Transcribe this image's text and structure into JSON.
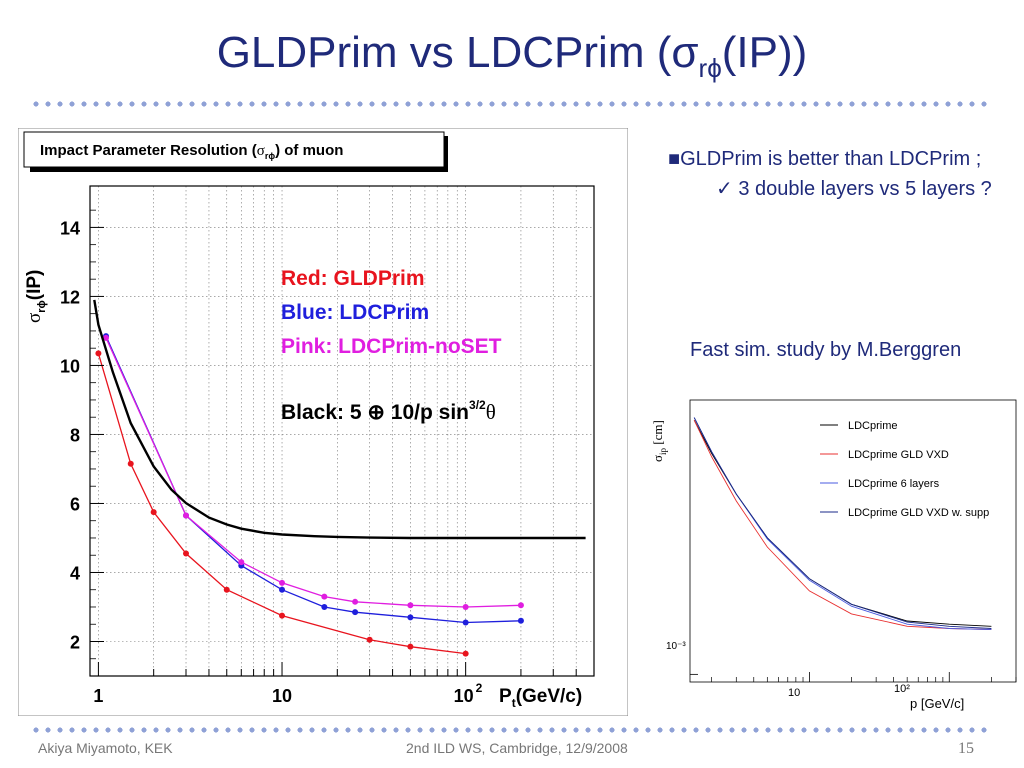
{
  "slide": {
    "title_main": "GLDPrim vs LDCPrim (σ",
    "title_sub": "rϕ",
    "title_end": "(IP))",
    "page_number": "15",
    "footer_left": "Akiya Miyamoto, KEK",
    "footer_center": "2nd ILD WS, Cambridge, 12/9/2008"
  },
  "bullets": {
    "b1": "GLDPrim is better than LDCPrim ;",
    "b1_sub": "3 double layers vs 5 layers ?"
  },
  "fast_sim": {
    "caption": "Fast sim. study  by M.Berggren"
  },
  "colors": {
    "title": "#1f2a7a",
    "red": "#e8141e",
    "blue": "#1f1fdc",
    "pink": "#e01ee0",
    "black": "#000000",
    "dots": "#8fa1d6"
  },
  "chart_data": [
    {
      "type": "line",
      "title": "Impact Parameter Resolution (σrϕ) of muon",
      "xlabel": "Pt(GeV/c)",
      "ylabel": "σrϕ(IP)",
      "xscale": "log",
      "xlim": [
        0.9,
        500
      ],
      "ylim": [
        1,
        15.2
      ],
      "grid": true,
      "x_ticks": [
        1,
        10,
        100
      ],
      "x_tick_labels": [
        "1",
        "10",
        "10²"
      ],
      "y_ticks": [
        2,
        4,
        6,
        8,
        10,
        12,
        14
      ],
      "y_tick_labels": [
        "2",
        "4",
        "6",
        "8",
        "10",
        "12",
        "14"
      ],
      "series": [
        {
          "name": "Red: GLDPrim",
          "color": "#e8141e",
          "x": [
            1,
            1.5,
            2,
            3,
            5,
            10,
            30,
            50,
            100
          ],
          "y": [
            10.35,
            7.15,
            5.75,
            4.55,
            3.5,
            2.75,
            2.05,
            1.85,
            1.65
          ]
        },
        {
          "name": "Blue: LDCPrim",
          "color": "#1f1fdc",
          "x": [
            1.1,
            3,
            6,
            10,
            17,
            25,
            50,
            100,
            200
          ],
          "y": [
            10.85,
            5.65,
            4.2,
            3.5,
            3.0,
            2.85,
            2.7,
            2.55,
            2.6
          ]
        },
        {
          "name": "Pink: LDCPrim-noSET",
          "color": "#e01ee0",
          "x": [
            1.1,
            3,
            6,
            10,
            17,
            25,
            50,
            100,
            200
          ],
          "y": [
            10.8,
            5.65,
            4.3,
            3.7,
            3.3,
            3.15,
            3.05,
            3.0,
            3.05
          ]
        },
        {
          "name": "Black: 5 ⊕ 10/p sin3/2θ",
          "color": "#000000",
          "formula": "sqrt(25 + 100/p^2)",
          "x": [
            0.95,
            1,
            1.2,
            1.5,
            2,
            2.5,
            3,
            4,
            5,
            6,
            8,
            10,
            15,
            20,
            30,
            50,
            100,
            200,
            450
          ],
          "y": [
            11.9,
            11.18,
            9.8,
            8.33,
            7.07,
            6.4,
            6.01,
            5.59,
            5.39,
            5.27,
            5.15,
            5.1,
            5.05,
            5.03,
            5.01,
            5.0,
            5.0,
            5.0,
            5.0
          ]
        }
      ],
      "legend_text": [
        "Red: GLDPrim",
        "Blue: LDCPrim",
        "Pink: LDCPrim-noSET"
      ],
      "black_label": {
        "prefix": "Black: 5 ⊕ 10/p sin",
        "sup": "3/2",
        "suffix": "θ"
      }
    },
    {
      "type": "line",
      "title": "",
      "xlabel": "p [GeV/c]",
      "ylabel": "σip [cm]",
      "xscale": "log",
      "yscale": "log",
      "x_tick_labels": [
        "10",
        "10²"
      ],
      "y_tick_labels": [
        "10⁻³"
      ],
      "legend_placement": "top-right",
      "series": [
        {
          "name": "LDCprime",
          "color": "#000000",
          "x": [
            1.5,
            2,
            3,
            5,
            10,
            20,
            50,
            100,
            200
          ],
          "y": [
            5.5,
            4.4,
            3.35,
            2.5,
            1.9,
            1.6,
            1.43,
            1.4,
            1.38
          ]
        },
        {
          "name": "LDCprime GLD VXD",
          "color": "#e83030",
          "x": [
            1.5,
            2,
            3,
            5,
            10,
            20,
            50,
            100,
            200
          ],
          "y": [
            5.5,
            4.3,
            3.2,
            2.35,
            1.75,
            1.5,
            1.38,
            1.36,
            1.35
          ]
        },
        {
          "name": "LDCprime 6 layers",
          "color": "#4a5be0",
          "x": [
            1.5,
            2,
            3,
            5,
            10,
            20,
            50,
            100,
            200
          ],
          "y": [
            5.6,
            4.45,
            3.35,
            2.48,
            1.88,
            1.58,
            1.4,
            1.36,
            1.35
          ]
        },
        {
          "name": "LDCprime GLD VXD w. supp",
          "color": "#1a2a8a",
          "x": [
            1.5,
            2,
            3,
            5,
            10,
            20,
            50,
            100,
            200
          ],
          "y": [
            5.6,
            4.45,
            3.35,
            2.5,
            1.9,
            1.6,
            1.42,
            1.38,
            1.36
          ]
        }
      ]
    }
  ]
}
